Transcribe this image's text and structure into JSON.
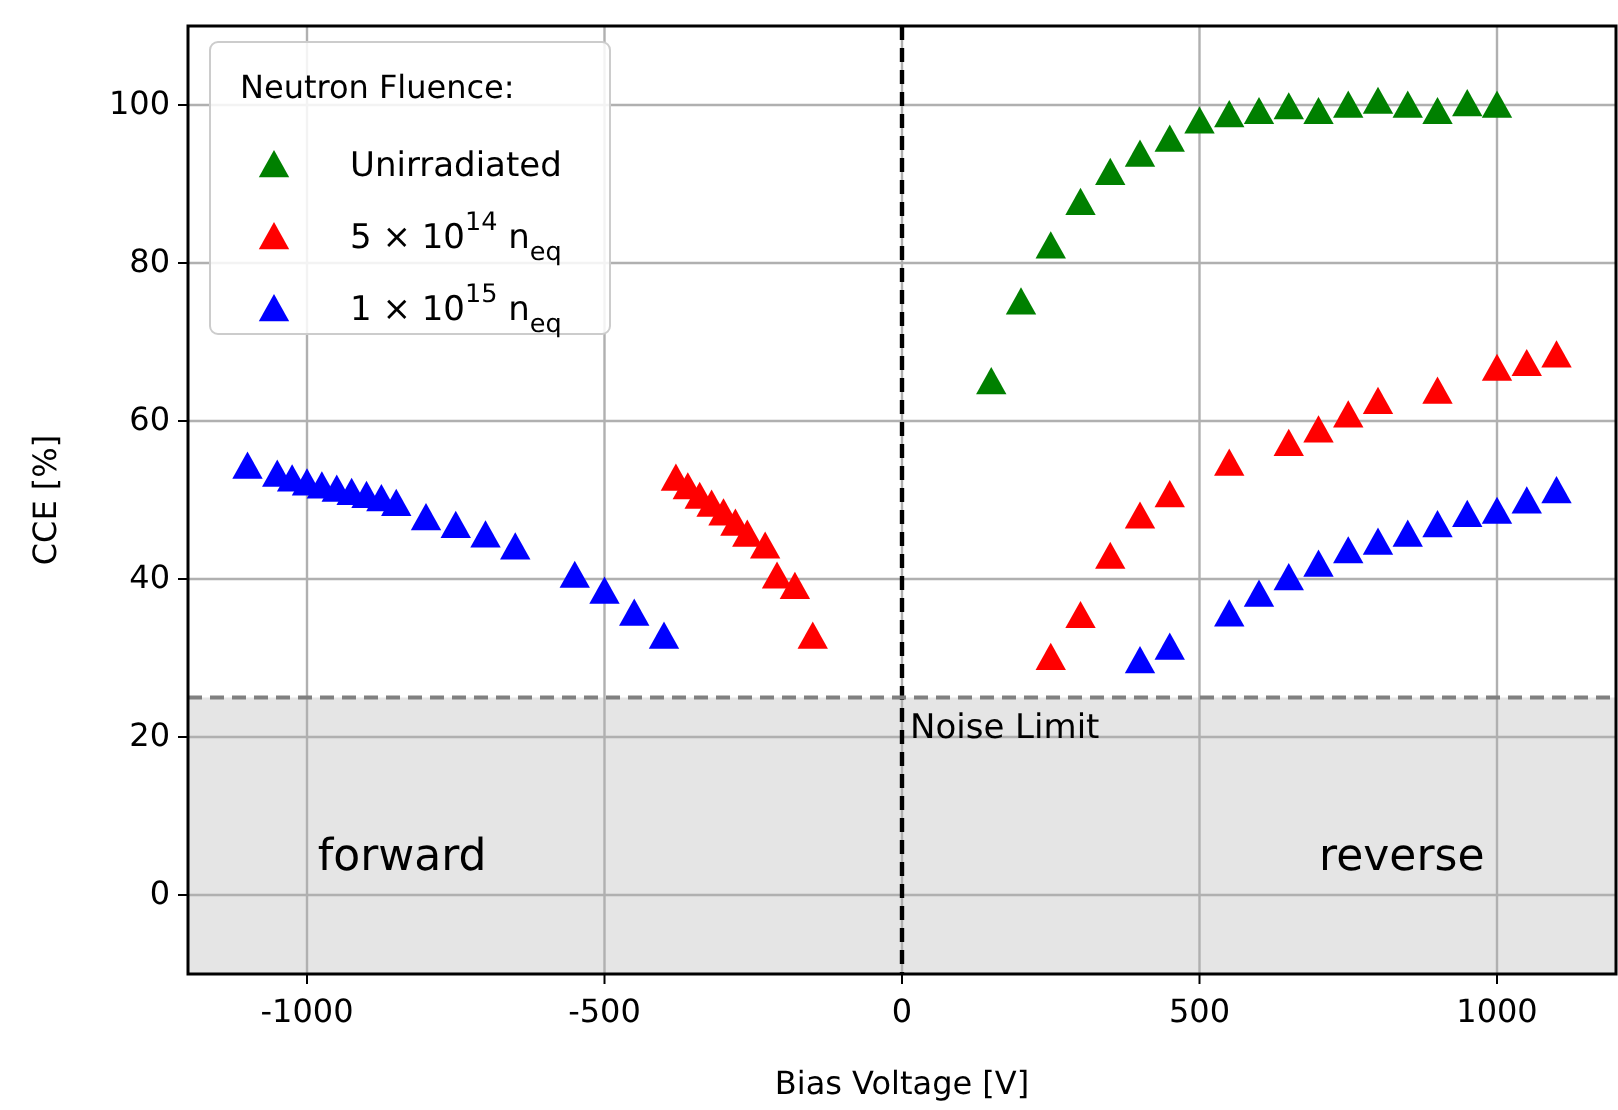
{
  "chart_data": {
    "type": "scatter",
    "xlabel": "Bias Voltage [V]",
    "ylabel": "CCE [%]",
    "legend_title": "Neutron Fluence:",
    "legend": "top left",
    "grid": true,
    "marker": "triangle",
    "xlim": [
      -1200,
      1200
    ],
    "xticks": [
      -1000,
      -500,
      0,
      500,
      1000
    ],
    "ylim": [
      -10,
      110
    ],
    "yticks": [
      0,
      20,
      40,
      60,
      80,
      100
    ],
    "series": [
      {
        "name": "Unirradiated",
        "color": "#008000",
        "x": [
          150,
          200,
          250,
          300,
          350,
          400,
          450,
          500,
          550,
          600,
          650,
          700,
          750,
          800,
          850,
          900,
          950,
          1000
        ],
        "values": [
          64.8,
          74.9,
          82,
          87.5,
          91.3,
          93.6,
          95.5,
          97.8,
          98.6,
          99,
          99.6,
          99,
          99.8,
          100.3,
          99.8,
          99,
          100,
          99.8
        ]
      },
      {
        "name": "5 × 10$^{14}$ n$_{eq}$",
        "color": "#ff0000",
        "x": [
          -380,
          -360,
          -340,
          -320,
          -300,
          -280,
          -260,
          -230,
          -210,
          -180,
          -150,
          250,
          300,
          350,
          400,
          450,
          550,
          650,
          700,
          750,
          800,
          900,
          1000,
          1050,
          1100
        ],
        "values": [
          52.6,
          51.5,
          50.3,
          49.3,
          48.2,
          46.9,
          45.5,
          44,
          40.2,
          38.9,
          32.6,
          29.9,
          35.2,
          42.7,
          47.8,
          50.5,
          54.5,
          57,
          58.7,
          60.6,
          62.3,
          63.6,
          66.5,
          67.1,
          68.2
        ]
      },
      {
        "name": "1 × 10$^{15}$ n$_{eq}$",
        "color": "#0000ff",
        "x": [
          -1100,
          -1050,
          -1025,
          -1000,
          -975,
          -950,
          -925,
          -900,
          -875,
          -850,
          -800,
          -750,
          -700,
          -650,
          -550,
          -500,
          -450,
          -400,
          400,
          450,
          550,
          600,
          650,
          700,
          750,
          800,
          850,
          900,
          950,
          1000,
          1050,
          1100
        ],
        "values": [
          54.1,
          53.1,
          52.5,
          52,
          51.6,
          51.2,
          50.8,
          50.4,
          50,
          49.4,
          47.6,
          46.6,
          45.4,
          43.9,
          40.3,
          38.3,
          35.5,
          32.6,
          29.5,
          31.2,
          35.4,
          37.9,
          40,
          41.7,
          43.4,
          44.5,
          45.5,
          46.7,
          48,
          48.4,
          49.7,
          51
        ]
      }
    ],
    "ref_lines": [
      {
        "axis": "x",
        "value": 0,
        "color": "#000000",
        "line_style": "dashed"
      },
      {
        "axis": "y",
        "value": 25,
        "label": "Noise Limit",
        "color": "#808080",
        "line_style": "dashed"
      }
    ],
    "bands": [
      {
        "axis": "y",
        "from": -10,
        "to": 25,
        "color": "#e5e5e5"
      }
    ],
    "annotations": [
      "forward",
      "reverse"
    ]
  }
}
